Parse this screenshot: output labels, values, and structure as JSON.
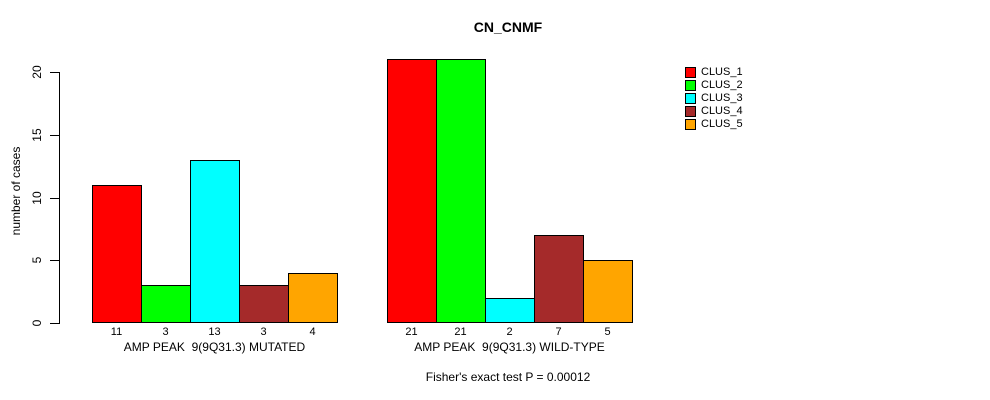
{
  "chart_data": {
    "type": "bar",
    "title": "CN_CNMF",
    "xlabel": "",
    "ylabel": "number of cases",
    "ylim": [
      0,
      21
    ],
    "yticks": [
      0,
      5,
      10,
      15,
      20
    ],
    "grid": false,
    "legend_position": "top-right-inside",
    "categories": [
      "AMP PEAK  9(9Q31.3) MUTATED",
      "AMP PEAK  9(9Q31.3) WILD-TYPE"
    ],
    "series": [
      {
        "name": "CLUS_1",
        "color": "#FF0000",
        "values": [
          11,
          21
        ]
      },
      {
        "name": "CLUS_2",
        "color": "#00FF00",
        "values": [
          3,
          21
        ]
      },
      {
        "name": "CLUS_3",
        "color": "#00FFFF",
        "values": [
          13,
          2
        ]
      },
      {
        "name": "CLUS_4",
        "color": "#A52A2A",
        "values": [
          3,
          7
        ]
      },
      {
        "name": "CLUS_5",
        "color": "#FFA500",
        "values": [
          4,
          5
        ]
      }
    ],
    "bar_value_labels_shown": true,
    "footnote": "Fisher's exact test P = 0.00012",
    "colors": {
      "background": "#FFFFFF",
      "axis": "#000000",
      "bar_border": "#000000",
      "text": "#000000"
    }
  }
}
